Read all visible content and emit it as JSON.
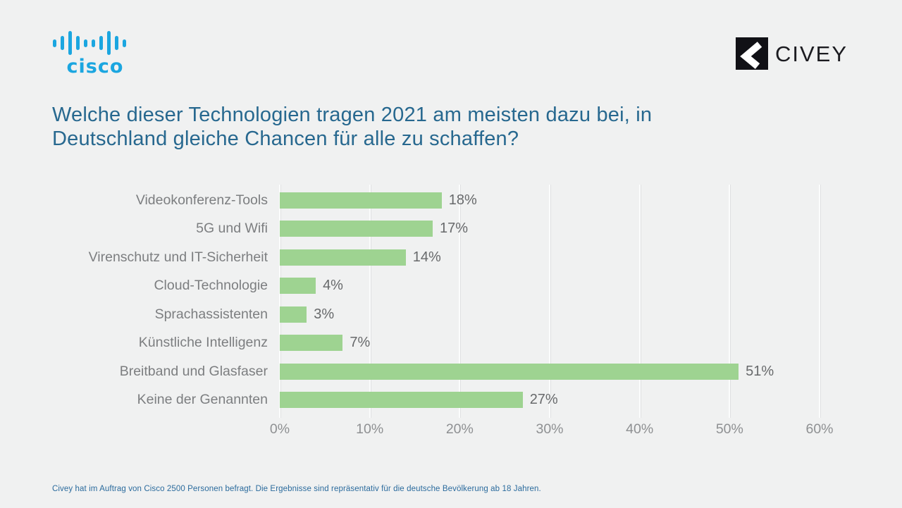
{
  "header": {
    "cisco": {
      "wordmark": "cisco"
    },
    "civey": {
      "wordmark": "CIVEY"
    }
  },
  "title": {
    "line1": "Welche dieser Technologien tragen 2021 am meisten dazu bei, in",
    "line2": "Deutschland gleiche Chancen für alle zu schaffen?"
  },
  "chart_data": {
    "type": "bar",
    "orientation": "horizontal",
    "categories": [
      "Videokonferenz-Tools",
      "5G und Wifi",
      "Virenschutz und IT-Sicherheit",
      "Cloud-Technologie",
      "Sprachassistenten",
      "Künstliche Intelligenz",
      "Breitband und Glasfaser",
      "Keine der Genannten"
    ],
    "values": [
      18,
      17,
      14,
      4,
      3,
      7,
      51,
      27
    ],
    "value_labels": [
      "18%",
      "17%",
      "14%",
      "4%",
      "3%",
      "7%",
      "51%",
      "27%"
    ],
    "xlabel": "",
    "ylabel": "",
    "xlim": [
      0,
      60
    ],
    "x_ticks": [
      "0%",
      "10%",
      "20%",
      "30%",
      "40%",
      "50%",
      "60%"
    ],
    "x_tick_values": [
      0,
      10,
      20,
      30,
      40,
      50,
      60
    ],
    "grid": true,
    "legend": false,
    "bar_color": "#9ed391"
  },
  "footnote": "Civey hat im Auftrag von Cisco 2500 Personen befragt. Die Ergebnisse sind repräsentativ für die deutsche Bevölkerung ab 18 Jahren.",
  "colors": {
    "background": "#f0f1f1",
    "title_blue": "#27688f",
    "bar_green": "#9ed391",
    "cisco_blue": "#1ba6e0",
    "civey_black": "#1b1b20",
    "footnote_blue": "#2b6b9d"
  },
  "cisco_bar_heights": [
    11,
    20,
    34,
    20,
    11,
    11,
    20,
    34,
    20,
    11
  ]
}
